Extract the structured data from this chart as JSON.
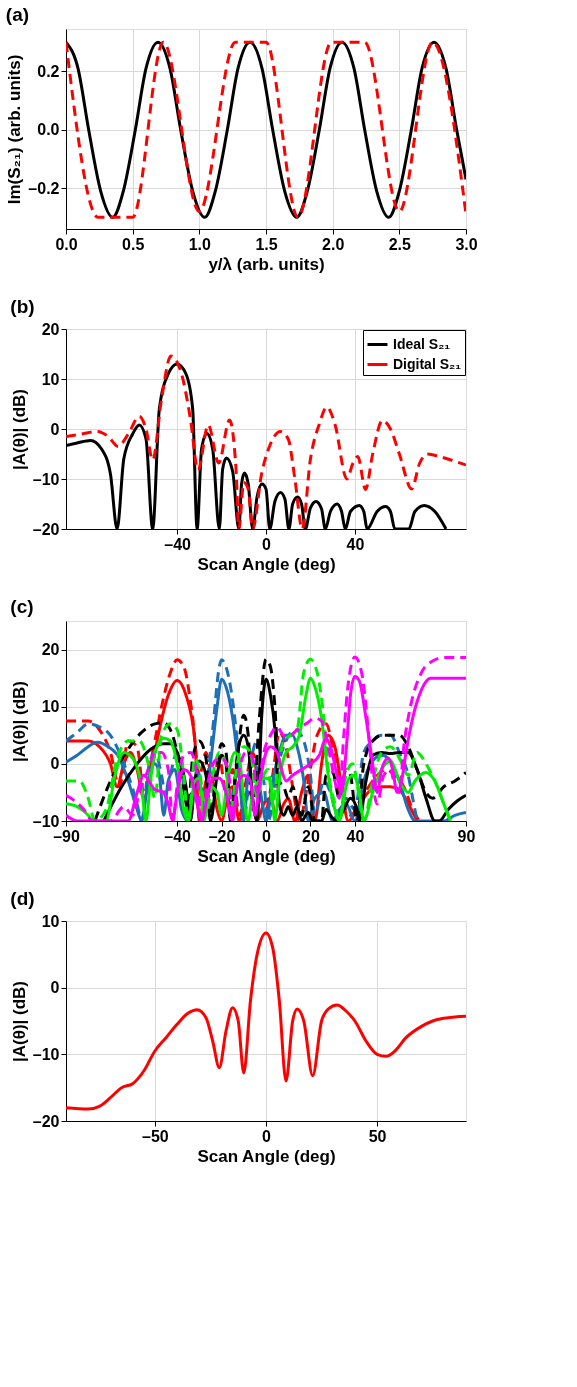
{
  "chart_data": [
    {
      "type": "line",
      "title": "(a)",
      "xlabel": "y/λ (arb. units)",
      "ylabel": "Im(S₂₁) (arb. units)",
      "xlim": [
        0,
        3
      ],
      "ylim": [
        -0.34,
        0.345
      ],
      "xticks": [
        {
          "value": 0,
          "label": "0.0"
        },
        {
          "value": 0.5,
          "label": "0.5"
        },
        {
          "value": 1,
          "label": "1.0"
        },
        {
          "value": 1.5,
          "label": "1.5"
        },
        {
          "value": 2,
          "label": "2.0"
        },
        {
          "value": 2.5,
          "label": "2.5"
        },
        {
          "value": 3,
          "label": "3.0"
        }
      ],
      "yticks": [
        {
          "value": -0.2,
          "label": "–0.2"
        },
        {
          "value": 0,
          "label": "0.0"
        },
        {
          "value": 0.2,
          "label": "0.2"
        }
      ],
      "grid": true,
      "series": [
        {
          "color": "#000000",
          "line_style": "solid",
          "x": [
            0,
            0.09,
            0.17,
            0.26,
            0.35,
            0.43,
            0.52,
            0.6,
            0.69,
            0.78,
            0.86,
            0.95,
            1.04,
            1.12,
            1.21,
            1.29,
            1.38,
            1.47,
            1.55,
            1.64,
            1.73,
            1.81,
            1.9,
            1.98,
            2.07,
            2.16,
            2.24,
            2.33,
            2.42,
            2.5,
            2.59,
            2.67,
            2.76,
            2.85,
            2.93,
            3.0
          ],
          "values": [
            0.3,
            0.21,
            0,
            -0.21,
            -0.3,
            -0.21,
            0,
            0.21,
            0.3,
            0.21,
            0,
            -0.21,
            -0.3,
            -0.21,
            0,
            0.21,
            0.3,
            0.21,
            0,
            -0.21,
            -0.3,
            -0.21,
            0,
            0.21,
            0.3,
            0.21,
            0,
            -0.21,
            -0.3,
            -0.21,
            0,
            0.21,
            0.3,
            0.21,
            0,
            -0.17
          ]
        },
        {
          "color": "#ff0000",
          "line_style": "dashed",
          "x": [
            0,
            0.24,
            0.5,
            0.73,
            1.0,
            1.27,
            1.5,
            1.74,
            1.99,
            2.24,
            2.5,
            2.75,
            3.0
          ],
          "values": [
            0.3,
            -0.3,
            -0.3,
            0.3,
            -0.28,
            0.3,
            0.3,
            -0.3,
            0.3,
            0.3,
            -0.28,
            0.3,
            -0.29
          ]
        }
      ]
    },
    {
      "type": "line",
      "title": "(b)",
      "xlabel": "Scan Angle (deg)",
      "ylabel": "|A(θ)| (dB)",
      "xlim": [
        -90,
        90
      ],
      "ylim": [
        -20,
        20
      ],
      "xticks": [
        {
          "value": -40,
          "label": "–40"
        },
        0,
        40
      ],
      "yticks": [
        {
          "value": -20,
          "label": "–20"
        },
        {
          "value": -10,
          "label": "–10"
        },
        0,
        10,
        20
      ],
      "grid": true,
      "legend": "top right",
      "series": [
        {
          "name": "Ideal S₂₁",
          "color": "#000000",
          "line_style": "solid",
          "x": [
            -90,
            -85,
            -79,
            -74,
            -70,
            -67,
            -64,
            -60,
            -57,
            -54,
            -51,
            -48,
            -44,
            -40,
            -36,
            -33,
            -31,
            -29,
            -26.6,
            -24,
            -21,
            -19.5,
            -17.8,
            -15,
            -12.2,
            -11,
            -9.7,
            -8,
            -6,
            -4,
            -1.8,
            0,
            1.7,
            4,
            6.5,
            8.5,
            10.3,
            12,
            14.2,
            16,
            17.7,
            20,
            22.5,
            25,
            26.7,
            29,
            32,
            34,
            35.7,
            38,
            42,
            44,
            45.5,
            50,
            53.8,
            56,
            58,
            64.3,
            67,
            71.2,
            76,
            81
          ],
          "values": [
            -3.3,
            -2.8,
            -2.3,
            -4,
            -9,
            -20,
            -6,
            -1,
            0.8,
            -2,
            -20,
            4,
            11,
            13,
            11,
            4,
            -20,
            -4,
            -0.9,
            -4,
            -20,
            -8,
            -5.8,
            -8.5,
            -20,
            -11,
            -8.8,
            -11,
            -20,
            -13.5,
            -11,
            -12,
            -20,
            -14.5,
            -12.7,
            -14,
            -20,
            -15,
            -13.6,
            -15,
            -20,
            -15.8,
            -14.5,
            -16,
            -20,
            -16.5,
            -15,
            -16.5,
            -20,
            -16.5,
            -15.3,
            -16.5,
            -20,
            -16.5,
            -15.5,
            -16.5,
            -20,
            -20,
            -16.5,
            -15.3,
            -16.5,
            -20
          ]
        },
        {
          "name": "Digital S₂₁",
          "color": "#ff0000",
          "line_style": "dashed",
          "x": [
            -90,
            -83,
            -76,
            -71,
            -66.5,
            -62,
            -57,
            -54,
            -51,
            -47,
            -42.8,
            -38,
            -34,
            -30.6,
            -26,
            -21.3,
            -16.4,
            -13.5,
            -12.2,
            -10,
            -8,
            -6,
            -2,
            2,
            6.5,
            10,
            13,
            16.3,
            20,
            24,
            27.4,
            31,
            36.4,
            39,
            41.3,
            44.8,
            48,
            52.4,
            56,
            60,
            65.6,
            69,
            72.6,
            78,
            84,
            90
          ],
          "values": [
            -1.5,
            -1,
            -0.5,
            -1.5,
            -3.5,
            -1,
            2.5,
            0,
            -6.2,
            6,
            14.6,
            11,
            2,
            -8.2,
            0.8,
            -6.8,
            1.8,
            -8,
            -20,
            -10.7,
            -12,
            -20,
            -9,
            -3,
            -0.5,
            -2,
            -10,
            -20,
            -6,
            1,
            4.4,
            1,
            -10,
            -7,
            -5.5,
            -12.1,
            -5,
            1.7,
            0,
            -5,
            -12,
            -7,
            -5,
            -5.5,
            -6.3,
            -7.2
          ]
        }
      ]
    },
    {
      "type": "line",
      "title": "(c)",
      "xlabel": "Scan Angle (deg)",
      "ylabel": "|A(θ)| (dB)",
      "xlim": [
        -90,
        90
      ],
      "ylim": [
        -10,
        25
      ],
      "xticks": [
        {
          "value": -90,
          "label": "–90"
        },
        {
          "value": -40,
          "label": "–40"
        },
        {
          "value": -20,
          "label": "–20"
        },
        0,
        20,
        40,
        90
      ],
      "yticks": [
        {
          "value": -10,
          "label": "–10"
        },
        0,
        10,
        20
      ],
      "grid": true,
      "series": [
        {
          "color": "#ff0000",
          "line_style": "solid",
          "x": [
            -90,
            -80,
            -75,
            -70,
            -67,
            -64,
            -61,
            -58,
            -55,
            -52,
            -48,
            -44,
            -40,
            -36,
            -32,
            -30,
            -27,
            -25,
            -22,
            -20,
            -17,
            -15,
            -12,
            -9,
            -7,
            -4,
            -1,
            2,
            5,
            8,
            10,
            13,
            16,
            19,
            22,
            25,
            28,
            31,
            34,
            37,
            41,
            46,
            52,
            56,
            60,
            64,
            68
          ],
          "values": [
            4,
            4,
            3,
            0,
            -4,
            0,
            2,
            -1,
            -6,
            -2,
            6,
            12,
            14.6,
            12,
            4,
            -10,
            -3,
            -2,
            -8,
            -10,
            -5,
            -4,
            -10,
            -6,
            -5,
            -10,
            -7,
            -6,
            -10,
            -7,
            -6,
            -10,
            -5,
            -2,
            -10,
            0,
            5,
            3,
            -4,
            -10,
            -8,
            -5,
            -4,
            -4,
            -4.5,
            -7,
            -10
          ]
        },
        {
          "color": "#ff0000",
          "line_style": "dashed",
          "x": [
            -90,
            -80,
            -75,
            -70,
            -66,
            -62,
            -58,
            -55,
            -51,
            -47,
            -43,
            -40,
            -37,
            -33,
            -30,
            -27,
            -24,
            -21,
            -18,
            -15,
            -12,
            -9,
            -6,
            -3,
            0,
            3,
            6,
            9,
            12,
            15,
            19,
            23,
            27,
            30,
            34,
            38,
            43,
            48,
            54,
            58,
            62,
            66,
            69
          ],
          "values": [
            7.5,
            7.5,
            6,
            2,
            -4,
            4,
            3,
            -5,
            2,
            10,
            16,
            18.2,
            17,
            8,
            -2,
            2,
            -3,
            1,
            -5,
            -1,
            -9,
            -3,
            2,
            -5,
            -8,
            -2,
            5.5,
            3,
            -4,
            -10,
            -3,
            5,
            7,
            3,
            -6,
            -9,
            -6,
            -3,
            -1,
            -2,
            -4,
            -8,
            -10
          ]
        },
        {
          "color": "#1f6fb4",
          "line_style": "solid",
          "x": [
            -90,
            -85,
            -80,
            -76,
            -71,
            -66,
            -62,
            -58,
            -56,
            -53,
            -50,
            -48,
            -46,
            -44,
            -41,
            -38,
            -35,
            -33,
            -30,
            -28,
            -25,
            -22,
            -20,
            -18,
            -15,
            -12,
            -10,
            -8,
            -5,
            -2,
            0,
            3,
            6,
            9,
            12,
            14,
            17,
            19,
            22,
            26,
            30,
            33,
            36,
            40,
            44,
            48,
            52,
            56,
            60,
            64,
            67,
            80,
            85,
            90
          ],
          "values": [
            0.3,
            1.5,
            3,
            3.8,
            3,
            1,
            -3,
            -8,
            -10,
            -3,
            0,
            -2,
            -9,
            -3,
            -1,
            -8,
            -10,
            -5,
            -4,
            -8,
            0,
            10,
            14.8,
            13.5,
            8,
            -2,
            -10,
            -2,
            0,
            -6,
            -10,
            -3,
            2,
            5,
            5,
            3,
            -3,
            -10,
            -6,
            -5,
            -10,
            -8,
            -7,
            -10,
            -3,
            0.5,
            1.5,
            0.5,
            -3,
            -8,
            -10,
            -10,
            -9,
            -8.5
          ]
        },
        {
          "color": "#1f6fb4",
          "line_style": "dashed",
          "x": [
            -90,
            -85,
            -80,
            -75,
            -70,
            -66,
            -62,
            -58,
            -56,
            -53,
            -50,
            -47,
            -45,
            -43,
            -40,
            -37,
            -35,
            -32,
            -30,
            -28,
            -24,
            -21,
            -20,
            -18,
            -15,
            -12,
            -10,
            -7,
            -4,
            -1,
            1,
            5,
            9,
            13,
            17,
            20,
            22,
            26,
            29,
            32,
            36,
            40,
            44,
            48,
            52,
            56,
            60,
            64,
            66,
            68
          ],
          "values": [
            4,
            5.5,
            7,
            6.5,
            5,
            2,
            -2,
            -7,
            -10,
            -1,
            2,
            -2,
            -6,
            -2,
            2,
            -4,
            -10,
            0,
            -2,
            -6,
            6,
            17,
            18.2,
            17,
            11,
            0,
            -10,
            0,
            4,
            -3,
            -10,
            -1,
            4,
            6,
            4,
            -2,
            -9,
            -3,
            -5,
            -9,
            -6,
            -8,
            2,
            4,
            5,
            5,
            2,
            -2,
            -6,
            -10
          ]
        },
        {
          "color": "#000000",
          "line_style": "solid",
          "x": [
            -73,
            -65,
            -58,
            -52,
            -46,
            -43,
            -40,
            -36,
            -34,
            -32,
            -30,
            -27,
            -25,
            -22,
            -20,
            -18,
            -16,
            -14,
            -12,
            -10,
            -8,
            -6,
            -4,
            -2,
            0,
            2,
            4,
            6,
            8,
            10,
            12,
            14,
            16,
            19,
            21,
            25,
            27,
            30,
            32,
            35,
            38,
            41,
            42,
            45,
            48,
            52,
            56,
            60,
            64,
            68,
            72,
            76,
            78,
            82,
            86,
            90
          ],
          "values": [
            -10,
            -4,
            0,
            2.5,
            3.5,
            3.5,
            2,
            -4,
            -10,
            -3,
            0.5,
            -2,
            -10,
            -2,
            1.5,
            0,
            -10,
            -3,
            3.5,
            5,
            3,
            -6,
            -10,
            8,
            14.8,
            12,
            6,
            -7,
            -9,
            -7.5,
            -9,
            -7.5,
            -10,
            -8.5,
            -10,
            -10,
            -8,
            -9.5,
            -10,
            -8,
            -6,
            -8,
            -10,
            -3,
            1.5,
            2,
            1.8,
            2,
            2,
            -1,
            -6,
            -10,
            -10,
            -8,
            -6.5,
            -5.5
          ]
        },
        {
          "color": "#000000",
          "line_style": "dashed",
          "x": [
            -77,
            -70,
            -63,
            -56,
            -50,
            -46,
            -42,
            -38,
            -35,
            -33,
            -30,
            -27,
            -25,
            -22,
            -20,
            -18,
            -16,
            -13,
            -10,
            -8,
            -6,
            -3,
            0,
            2,
            4,
            6,
            8,
            10,
            12,
            14,
            16,
            19,
            22,
            25,
            27,
            30,
            33,
            36,
            38,
            41,
            44,
            48,
            52,
            56,
            60,
            64,
            68,
            72,
            75,
            80,
            85,
            90
          ],
          "values": [
            -10,
            -3,
            2,
            5.5,
            7,
            7.2,
            5,
            -2,
            -8,
            1,
            4,
            1,
            -9,
            0,
            3.5,
            2,
            -9,
            1,
            8.5,
            5,
            -8,
            8,
            18.3,
            17,
            10,
            -3,
            -4,
            -6,
            -4,
            -7,
            -9,
            -4,
            -10,
            -10,
            -2,
            -1.5,
            -6,
            -1,
            -2,
            -10,
            0,
            4,
            5,
            5,
            5,
            3,
            -1,
            -5,
            -6,
            -4,
            -3,
            -1.5
          ]
        },
        {
          "color": "#00ee00",
          "line_style": "solid",
          "x": [
            -90,
            -85,
            -80,
            -78,
            -72,
            -68,
            -64,
            -60,
            -56,
            -54,
            -52,
            -50,
            -46,
            -43,
            -40,
            -37,
            -35,
            -32,
            -30,
            -28,
            -25,
            -22,
            -20,
            -17,
            -14,
            -12,
            -10,
            -8,
            -6,
            -3,
            0,
            2,
            4,
            6,
            9,
            12,
            15,
            18,
            20,
            22,
            25,
            28,
            31,
            33,
            36,
            39,
            42,
            44,
            48,
            52,
            56,
            60,
            64,
            67,
            72,
            76,
            80,
            83
          ],
          "values": [
            -7,
            -7.5,
            -9,
            -10,
            -10,
            -2,
            2,
            1,
            -4,
            -10,
            -3,
            2,
            4.5,
            4,
            0,
            -8,
            -10,
            -3,
            -2.5,
            -10,
            -4,
            -5,
            -9,
            -2,
            2,
            1,
            -6,
            -10,
            -5,
            -3,
            -2.5,
            -3,
            -10,
            -3,
            2,
            3,
            5,
            12,
            15,
            13.5,
            8,
            -2,
            -8,
            -10,
            -4,
            -2,
            -5,
            -10,
            -5,
            -1,
            0.5,
            -3,
            -5,
            -3,
            -1.5,
            -3,
            -7,
            -10
          ]
        },
        {
          "color": "#00ee00",
          "line_style": "dashed",
          "x": [
            -90,
            -84,
            -80,
            -77,
            -72,
            -67,
            -62,
            -57,
            -53,
            -50,
            -47,
            -43,
            -40,
            -37,
            -35,
            -32,
            -30,
            -27,
            -24,
            -21,
            -18,
            -16,
            -13,
            -10,
            -7,
            -4,
            -2,
            1,
            3,
            5,
            8,
            11,
            14,
            17,
            20,
            23,
            26,
            28,
            31,
            33,
            36,
            39,
            42,
            44,
            48,
            52,
            56,
            60,
            64,
            68,
            72,
            76,
            80,
            83
          ],
          "values": [
            -3,
            -3,
            -6,
            -10,
            -8,
            1,
            4,
            4,
            0,
            -6,
            5,
            7,
            6,
            -2,
            -10,
            1,
            -1,
            -9,
            -2,
            2,
            0,
            -9,
            0,
            3,
            2,
            -6,
            -3,
            -1,
            -7,
            -2,
            4,
            5,
            6,
            16,
            18.3,
            16,
            8,
            -1,
            -7,
            -10,
            -2,
            0,
            -6,
            -10,
            -3,
            2,
            3,
            1,
            -2,
            2,
            0,
            -3,
            -7,
            -10
          ]
        },
        {
          "color": "#ff00ff",
          "line_style": "solid",
          "x": [
            -90,
            -85,
            -62,
            -58,
            -55,
            -50,
            -46,
            -44,
            -42,
            -40,
            -37,
            -34,
            -31,
            -29,
            -26,
            -24,
            -21,
            -18,
            -15,
            -13,
            -10,
            -7,
            -5,
            -3,
            0,
            2,
            5,
            7,
            9,
            12,
            16,
            20,
            24,
            27,
            29,
            32,
            34,
            36,
            38,
            40,
            42,
            45,
            48,
            50,
            52,
            55,
            57,
            59,
            61,
            63,
            66,
            70,
            74,
            80,
            90
          ],
          "values": [
            -9,
            -10,
            -10,
            -5,
            -2,
            -4.5,
            -5,
            -7,
            -10,
            -5,
            -1,
            -2,
            -7,
            -10,
            -5,
            -2.5,
            -2.5,
            -5,
            -10,
            -4,
            -2,
            -3,
            -9,
            -4,
            2,
            3,
            2,
            -1,
            -3,
            -2,
            -1,
            0,
            1.5,
            4.5,
            3,
            -2,
            -5,
            2,
            12,
            15.3,
            14.5,
            8,
            0,
            -5,
            -1,
            1,
            -1,
            -5,
            -3,
            2,
            8,
            13,
            15,
            15,
            15
          ]
        },
        {
          "color": "#ff00ff",
          "line_style": "dashed",
          "x": [
            -90,
            -86,
            -82,
            -78,
            -70,
            -64,
            -60,
            -57,
            -53,
            -50,
            -47,
            -44,
            -42,
            -40,
            -37,
            -34,
            -31,
            -29,
            -26,
            -23,
            -20,
            -17,
            -15,
            -12,
            -9,
            -6,
            -4,
            -1,
            2,
            5,
            8,
            11,
            14,
            18,
            22,
            25,
            28,
            31,
            33,
            35,
            37,
            40,
            43,
            46,
            48,
            50,
            53,
            56,
            58,
            60,
            62,
            65,
            70,
            75,
            80,
            90
          ],
          "values": [
            -5.5,
            -6.5,
            -8,
            -10,
            -10,
            -7.5,
            -9,
            -5,
            -1,
            2,
            2,
            -1,
            -10,
            -4,
            1.5,
            2,
            -2,
            -10,
            -3,
            0.5,
            1,
            -1,
            -9,
            -1,
            2,
            1,
            -5,
            2,
            5,
            6.5,
            5,
            5,
            6,
            7,
            8,
            7.5,
            3,
            -3,
            -6,
            5,
            14,
            18.7,
            16,
            6,
            -3,
            -7,
            -2,
            -1,
            -4,
            -5,
            3,
            10,
            16,
            18,
            18.6,
            18.6
          ]
        }
      ]
    },
    {
      "type": "line",
      "title": "(d)",
      "xlabel": "Scan Angle (deg)",
      "ylabel": "|A(θ)| (dB)",
      "xlim": [
        -90,
        90
      ],
      "ylim": [
        -20,
        10
      ],
      "xticks": [
        {
          "value": -50,
          "label": "–50"
        },
        0,
        50
      ],
      "yticks": [
        {
          "value": -20,
          "label": "–20"
        },
        {
          "value": -10,
          "label": "–10"
        },
        0,
        10
      ],
      "grid": true,
      "series": [
        {
          "color": "#ff0000",
          "line_style": "solid",
          "x": [
            -90,
            -80,
            -75,
            -70,
            -65,
            -60,
            -55,
            -50,
            -45,
            -40,
            -35,
            -31,
            -27,
            -24,
            -21,
            -18,
            -15,
            -12.5,
            -10,
            -7,
            -4,
            0,
            3,
            6,
            9,
            12,
            14,
            17,
            21,
            25,
            28,
            32,
            36,
            40,
            45,
            50,
            54,
            58,
            63,
            70,
            75,
            80,
            85,
            90
          ],
          "values": [
            -18,
            -18.2,
            -17.8,
            -16.5,
            -15,
            -14.4,
            -12.5,
            -9.5,
            -7.5,
            -5.5,
            -3.8,
            -3.3,
            -4.5,
            -8,
            -12,
            -6.5,
            -3,
            -5,
            -12.8,
            -2,
            5,
            8.2,
            6,
            -2,
            -14,
            -5,
            -3.2,
            -5,
            -13.2,
            -5,
            -3.2,
            -2.6,
            -3.5,
            -5,
            -8,
            -10,
            -10.3,
            -9.5,
            -7.5,
            -5.8,
            -5,
            -4.6,
            -4.4,
            -4.3
          ]
        }
      ]
    }
  ]
}
